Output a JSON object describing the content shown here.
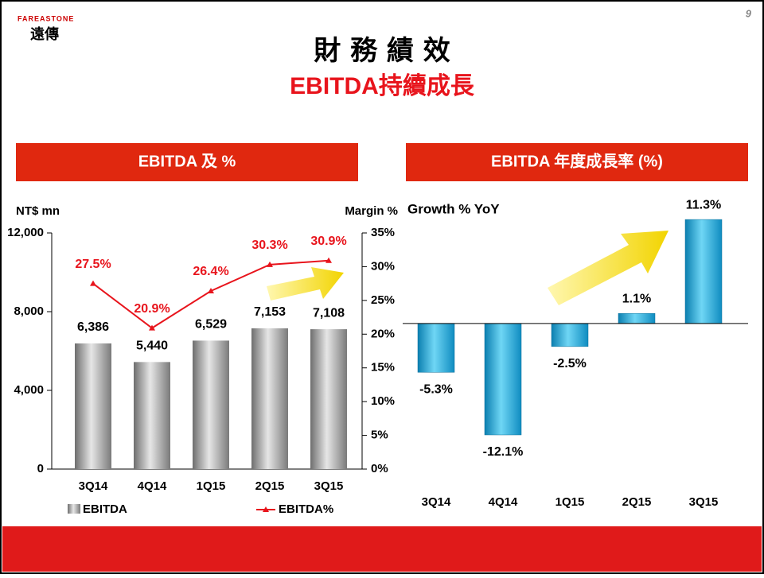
{
  "slide": {
    "logo_top": "FAREASTONE",
    "logo_bottom": "遠傳",
    "page": "9",
    "title": "財 務 績 效",
    "subtitle": "EBITDA持續成長"
  },
  "chart_data": [
    {
      "type": "combo",
      "title": "EBITDA 及 %",
      "ylabel": "NT$ mn",
      "y2label": "Margin %",
      "categories": [
        "3Q14",
        "4Q14",
        "1Q15",
        "2Q15",
        "3Q15"
      ],
      "series": [
        {
          "name": "EBITDA",
          "type": "bar",
          "color": "#9a9a9a",
          "values": [
            6386,
            5440,
            6529,
            7153,
            7108
          ],
          "value_labels": [
            "6,386",
            "5,440",
            "6,529",
            "7,153",
            "7,108"
          ]
        },
        {
          "name": "EBITDA%",
          "type": "line",
          "axis": "y2",
          "color": "#e8141c",
          "values": [
            27.5,
            20.9,
            26.4,
            30.3,
            30.9
          ],
          "value_labels": [
            "27.5%",
            "20.9%",
            "26.4%",
            "30.3%",
            "30.9%"
          ]
        }
      ],
      "ylim": [
        0,
        12000
      ],
      "yticks": [
        0,
        {
          "value": 4000,
          "label": "4,000"
        },
        {
          "value": 8000,
          "label": "8,000"
        },
        {
          "value": 12000,
          "label": "12,000"
        }
      ],
      "y2lim": [
        0,
        35
      ],
      "y2ticks": [
        {
          "value": 0,
          "label": "0%"
        },
        {
          "value": 5,
          "label": "5%"
        },
        {
          "value": 10,
          "label": "10%"
        },
        {
          "value": 15,
          "label": "15%"
        },
        {
          "value": 20,
          "label": "20%"
        },
        {
          "value": 25,
          "label": "25%"
        },
        {
          "value": 30,
          "label": "30%"
        },
        {
          "value": 35,
          "label": "35%"
        }
      ],
      "legend": "bottom"
    },
    {
      "type": "bar",
      "title": "EBITDA 年度成長率 (%)",
      "ylabel": "Growth % YoY",
      "categories": [
        "3Q14",
        "4Q14",
        "1Q15",
        "2Q15",
        "3Q15"
      ],
      "values": [
        -5.3,
        -12.1,
        -2.5,
        1.1,
        11.3
      ],
      "value_labels": [
        "-5.3%",
        "-12.1%",
        "-2.5%",
        "1.1%",
        "11.3%"
      ],
      "color": "#1aa8d8",
      "ylim": [
        -14,
        12
      ]
    }
  ]
}
